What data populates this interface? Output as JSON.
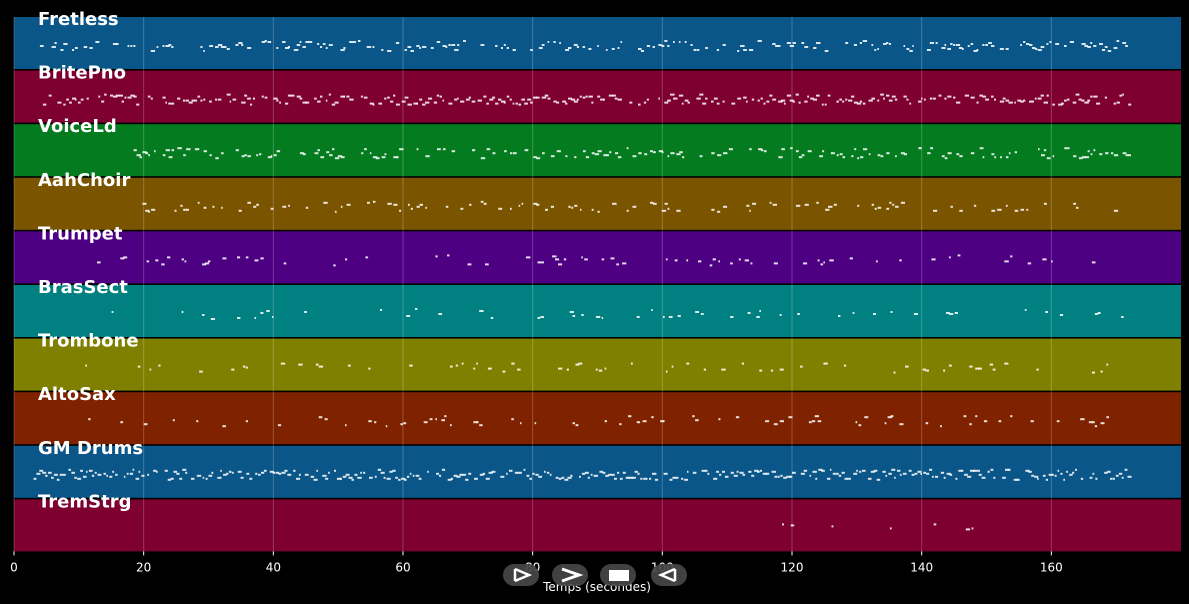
{
  "tracks": [
    {
      "name": "Fretless",
      "color": "#0b5688"
    },
    {
      "name": "BritePno",
      "color": "#7d0030"
    },
    {
      "name": "VoiceLd",
      "color": "#057b20"
    },
    {
      "name": "AahChoir",
      "color": "#7b5400"
    },
    {
      "name": "Trumpet",
      "color": "#4d0082"
    },
    {
      "name": "BrasSect",
      "color": "#008080"
    },
    {
      "name": "Trombone",
      "color": "#808000"
    },
    {
      "name": "AltoSax",
      "color": "#7f2200"
    },
    {
      "name": "GM Drums",
      "color": "#0b5688"
    },
    {
      "name": "TremStrg",
      "color": "#7d0030"
    }
  ],
  "axis": {
    "label": "Temps (secondes)",
    "min": 0,
    "max": 180,
    "ticks": [
      0,
      20,
      40,
      60,
      80,
      100,
      120,
      140,
      160
    ]
  },
  "transport": [
    {
      "name": "play-icon"
    },
    {
      "name": "fast-forward-icon"
    },
    {
      "name": "stop-icon"
    },
    {
      "name": "rewind-icon"
    }
  ]
}
